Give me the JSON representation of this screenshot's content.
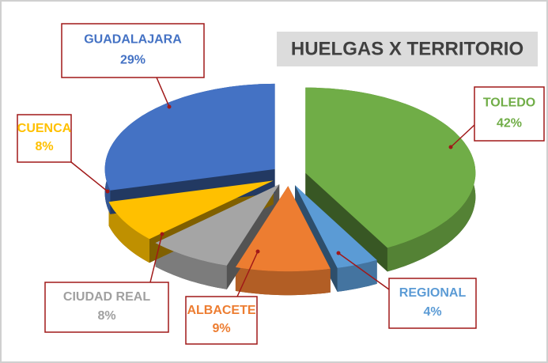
{
  "chart_data": {
    "type": "pie3d",
    "title": "HUELGAS X TERRITORIO",
    "categories": [
      "TOLEDO",
      "REGIONAL",
      "ALBACETE",
      "CIUDAD REAL",
      "CUENCA",
      "GUADALAJARA"
    ],
    "values": [
      42,
      4,
      9,
      8,
      8,
      29
    ],
    "value_labels": [
      "42%",
      "4%",
      "9%",
      "8%",
      "8%",
      "29%"
    ],
    "colors": [
      "#70ad47",
      "#5b9bd5",
      "#ed7d31",
      "#a5a5a5",
      "#ffc000",
      "#4472c4"
    ]
  }
}
